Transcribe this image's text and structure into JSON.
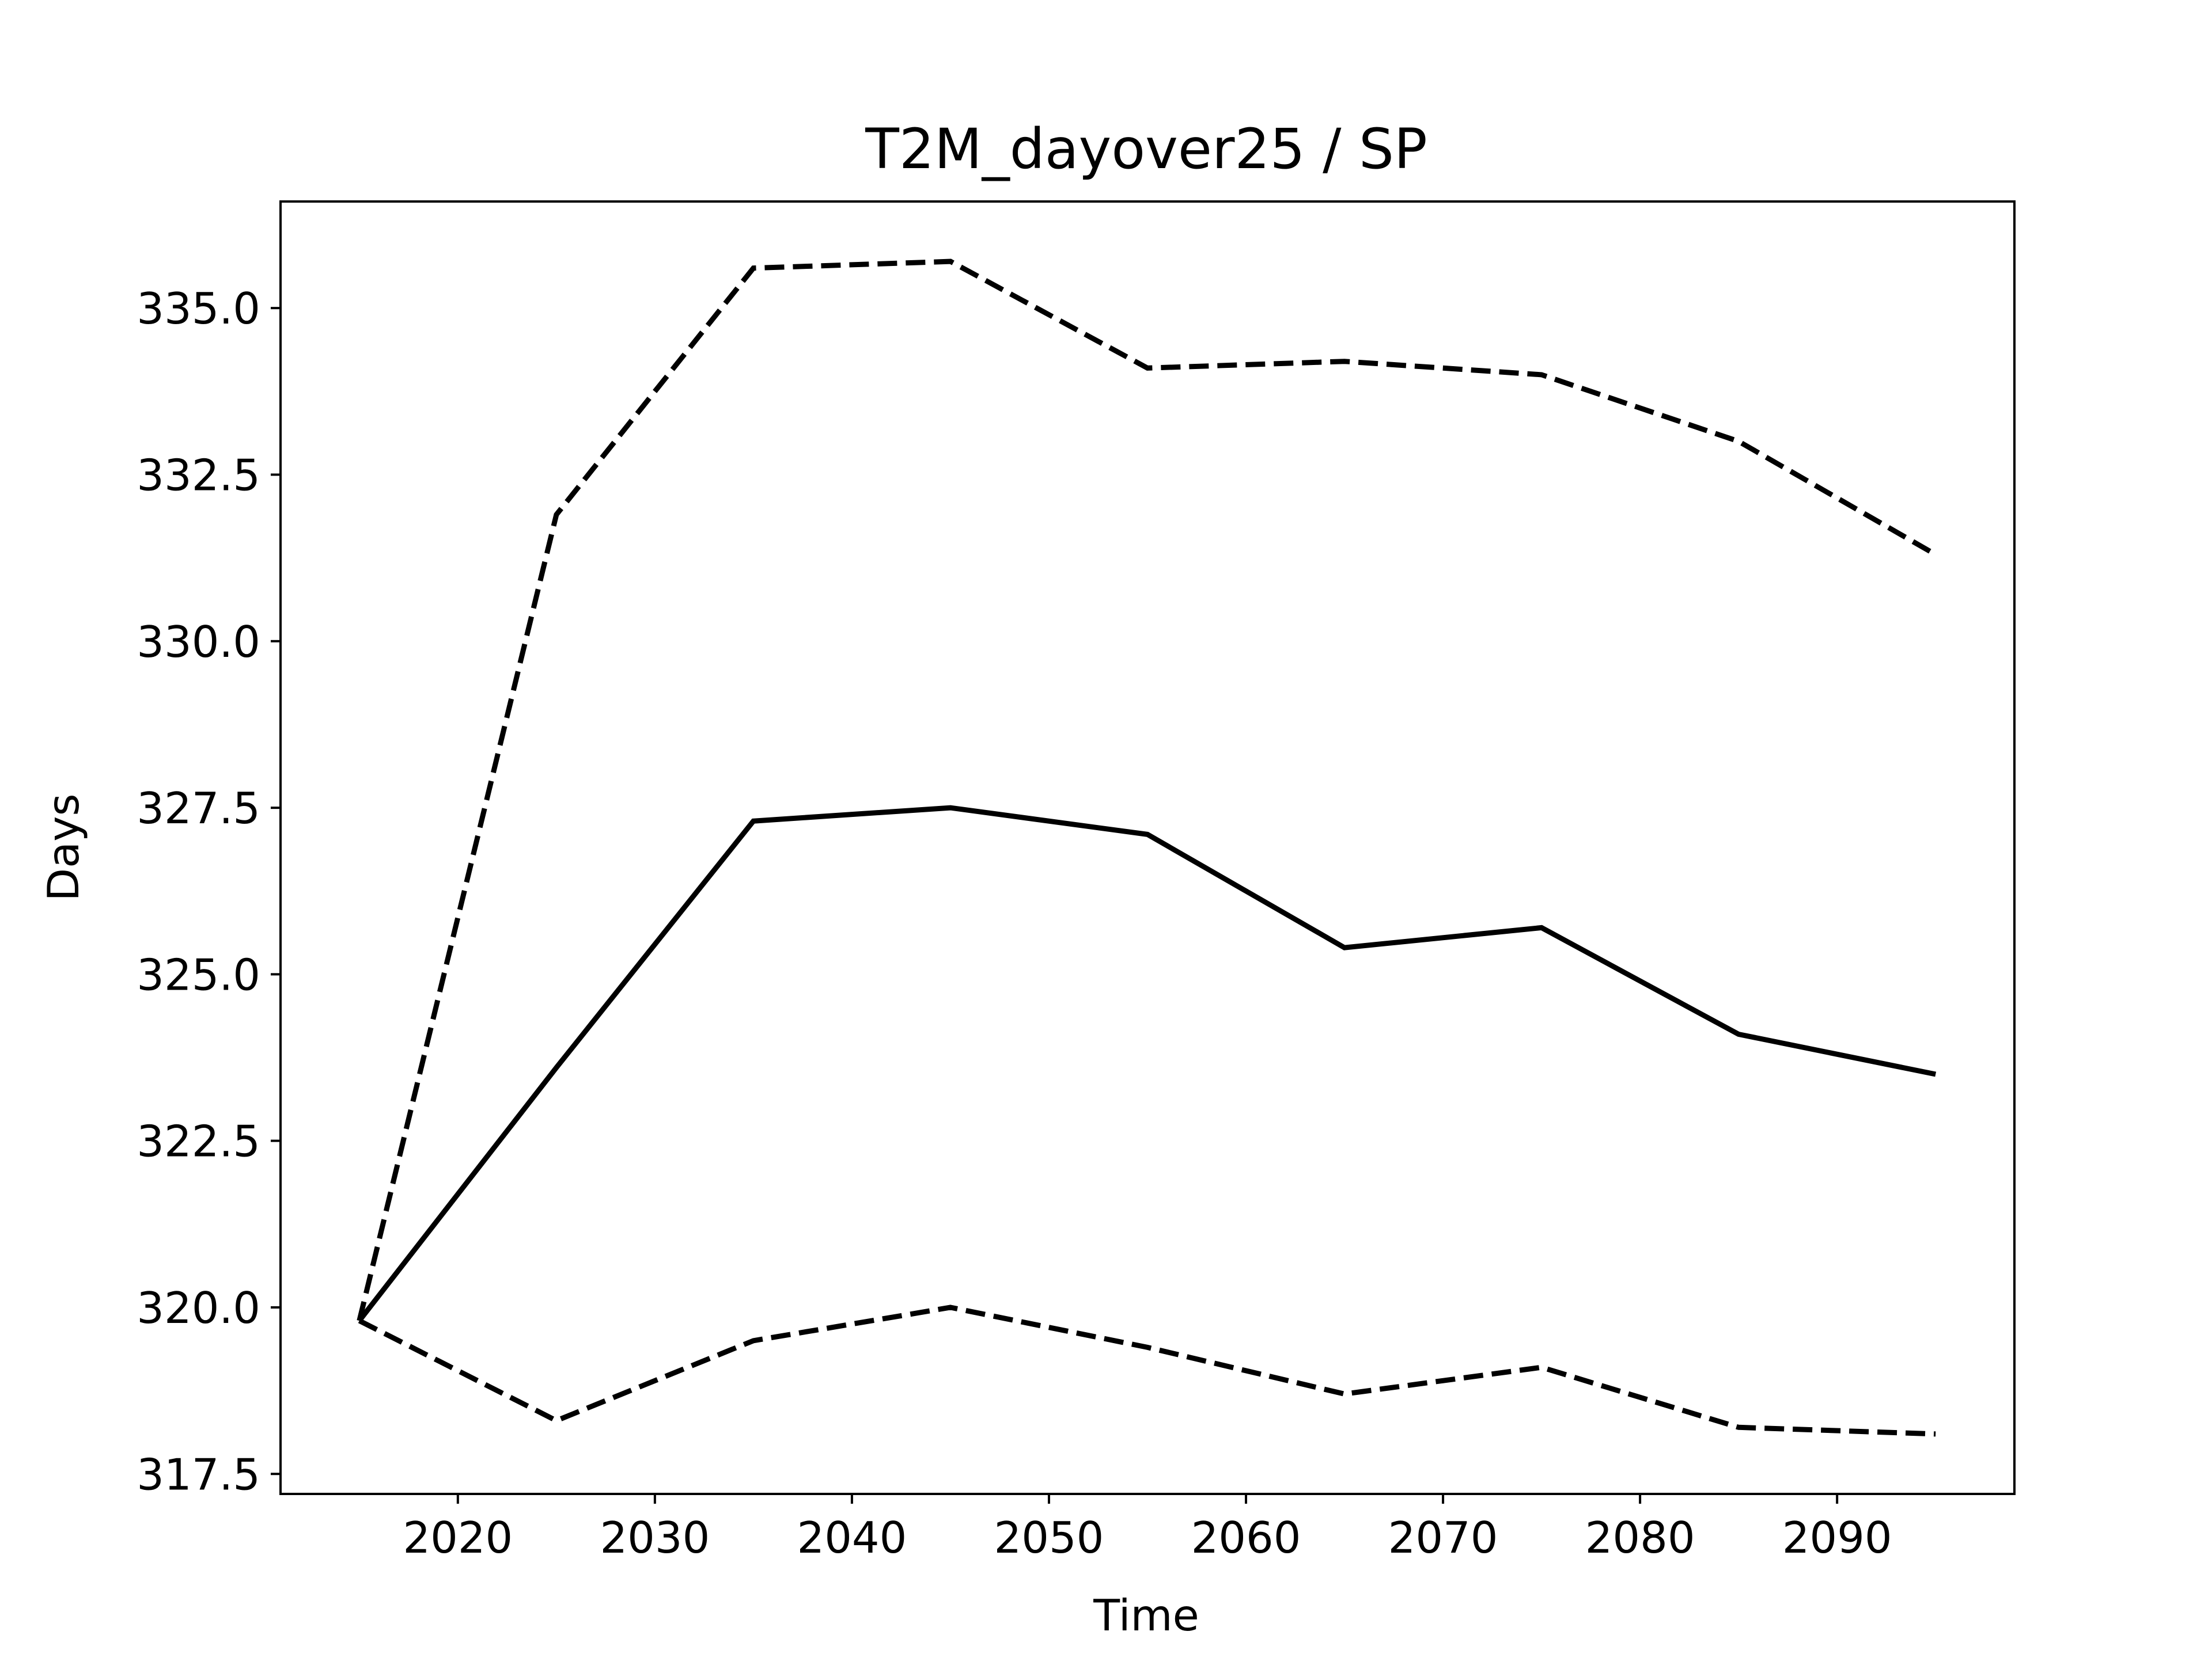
{
  "chart_data": {
    "type": "line",
    "title": "T2M_dayover25 / SP",
    "xlabel": "Time",
    "ylabel": "Days",
    "xlim": [
      2011.0,
      2099.0
    ],
    "ylim": [
      317.2,
      336.6
    ],
    "x_ticks": [
      2020,
      2030,
      2040,
      2050,
      2060,
      2070,
      2080,
      2090
    ],
    "y_ticks": [
      317.5,
      320.0,
      322.5,
      325.0,
      327.5,
      330.0,
      332.5,
      335.0
    ],
    "y_tick_labels": [
      "317.5",
      "320.0",
      "322.5",
      "325.0",
      "327.5",
      "330.0",
      "332.5",
      "335.0"
    ],
    "grid": false,
    "x": [
      2015,
      2025,
      2035,
      2045,
      2055,
      2065,
      2075,
      2085,
      2095
    ],
    "series": [
      {
        "values": [
          319.8,
          323.6,
          327.3,
          327.5,
          327.1,
          325.4,
          325.7,
          324.1,
          323.5
        ],
        "style": "solid",
        "color": "#000000"
      },
      {
        "values": [
          319.8,
          331.9,
          335.6,
          335.7,
          334.1,
          334.2,
          334.0,
          333.0,
          331.3
        ],
        "style": "dashed",
        "color": "#000000"
      },
      {
        "values": [
          319.8,
          318.3,
          319.5,
          320.0,
          319.4,
          318.7,
          319.1,
          318.2,
          318.1
        ],
        "style": "dashed",
        "color": "#000000"
      }
    ]
  }
}
